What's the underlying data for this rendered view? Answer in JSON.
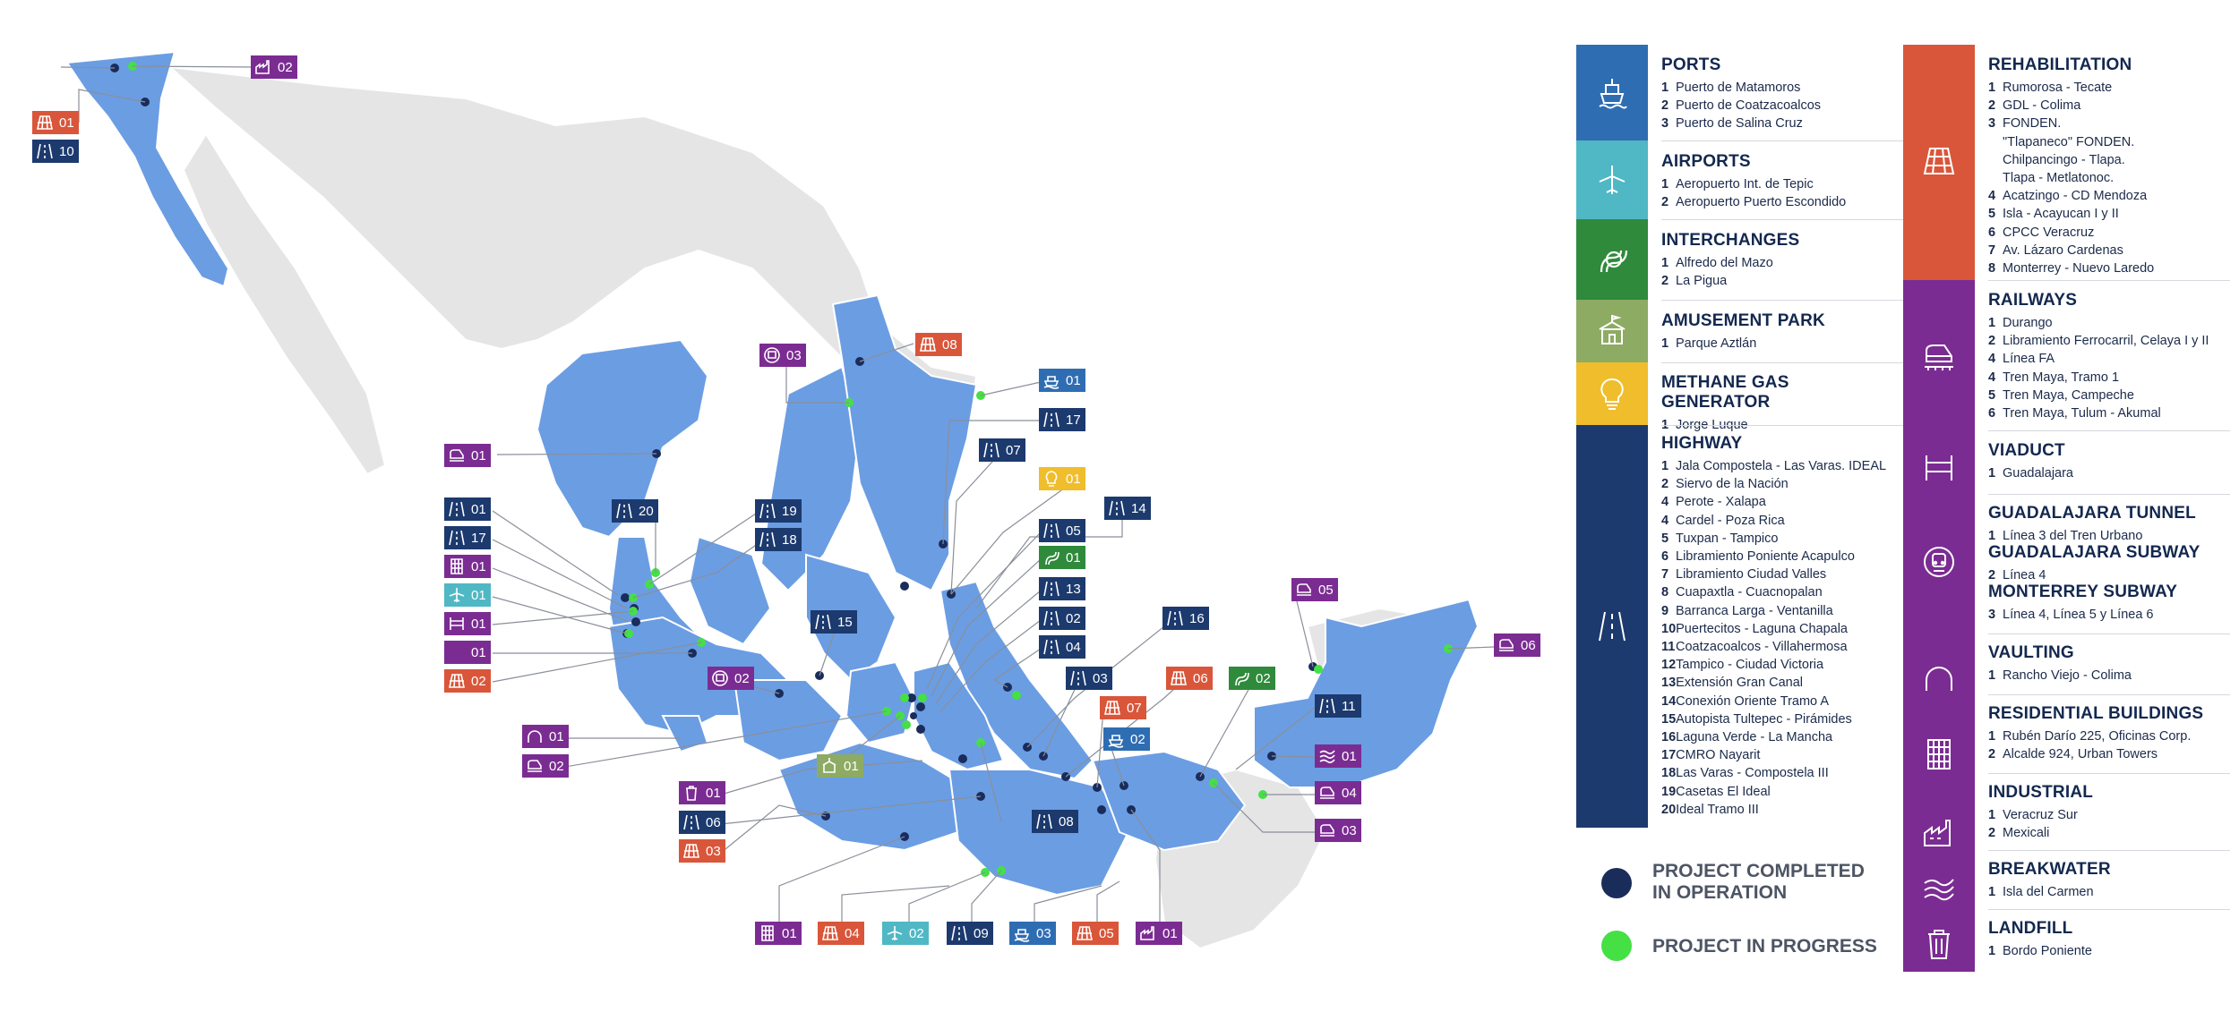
{
  "colors": {
    "state_blue": "#6b9de3",
    "land_gray": "#e5e5e5",
    "completed": "#1a2c5a",
    "in_progress": "#44e044",
    "ports": "#2f6db3",
    "airports": "#4fb8c4",
    "interchanges": "#2f8a3c",
    "amusement": "#8dab63",
    "methane": "#f0bd2c",
    "highway": "#1c3a6e",
    "rehabilitation": "#d9563a",
    "purple": "#7b2c92"
  },
  "map_tags": [
    {
      "id": "t1",
      "label": "02",
      "icon": "industrial-icon",
      "color": "#7b2c92"
    },
    {
      "id": "t2",
      "label": "01",
      "icon": "rehabilitation-icon",
      "color": "#d9563a"
    },
    {
      "id": "t3",
      "label": "10",
      "icon": "highway-icon",
      "color": "#1c3a6e"
    },
    {
      "id": "t4",
      "label": "03",
      "icon": "subway-icon",
      "color": "#7b2c92"
    },
    {
      "id": "t5",
      "label": "08",
      "icon": "rehabilitation-icon",
      "color": "#d9563a"
    },
    {
      "id": "t6",
      "label": "01",
      "icon": "ports-icon",
      "color": "#2f6db3"
    },
    {
      "id": "t7",
      "label": "17",
      "icon": "highway-icon",
      "color": "#1c3a6e"
    },
    {
      "id": "t8",
      "label": "07",
      "icon": "highway-icon",
      "color": "#1c3a6e"
    },
    {
      "id": "t9",
      "label": "01",
      "icon": "methane-icon",
      "color": "#f0bd2c"
    },
    {
      "id": "t10",
      "label": "14",
      "icon": "highway-icon",
      "color": "#1c3a6e"
    },
    {
      "id": "t11",
      "label": "05",
      "icon": "highway-icon",
      "color": "#1c3a6e"
    },
    {
      "id": "t12",
      "label": "01",
      "icon": "interchange-icon",
      "color": "#2f8a3c"
    },
    {
      "id": "t13",
      "label": "13",
      "icon": "highway-icon",
      "color": "#1c3a6e"
    },
    {
      "id": "t14",
      "label": "02",
      "icon": "highway-icon",
      "color": "#1c3a6e"
    },
    {
      "id": "t15",
      "label": "04",
      "icon": "highway-icon",
      "color": "#1c3a6e"
    },
    {
      "id": "t16",
      "label": "16",
      "icon": "highway-icon",
      "color": "#1c3a6e"
    },
    {
      "id": "t17",
      "label": "03",
      "icon": "highway-icon",
      "color": "#1c3a6e"
    },
    {
      "id": "t18",
      "label": "06",
      "icon": "rehabilitation-icon",
      "color": "#d9563a"
    },
    {
      "id": "t19",
      "label": "07",
      "icon": "rehabilitation-icon",
      "color": "#d9563a"
    },
    {
      "id": "t20",
      "label": "02",
      "icon": "ports-icon",
      "color": "#2f6db3"
    },
    {
      "id": "t21",
      "label": "02",
      "icon": "interchange-icon",
      "color": "#2f8a3c"
    },
    {
      "id": "t22",
      "label": "05",
      "icon": "railway-icon",
      "color": "#7b2c92"
    },
    {
      "id": "t23",
      "label": "06",
      "icon": "railway-icon",
      "color": "#7b2c92"
    },
    {
      "id": "t24",
      "label": "11",
      "icon": "highway-icon",
      "color": "#1c3a6e"
    },
    {
      "id": "t25",
      "label": "01",
      "icon": "breakwater-icon",
      "color": "#7b2c92"
    },
    {
      "id": "t26",
      "label": "04",
      "icon": "railway-icon",
      "color": "#7b2c92"
    },
    {
      "id": "t27",
      "label": "03",
      "icon": "railway-icon",
      "color": "#7b2c92"
    },
    {
      "id": "t28",
      "label": "01",
      "icon": "railway-icon",
      "color": "#7b2c92"
    },
    {
      "id": "t29",
      "label": "01",
      "icon": "highway-icon",
      "color": "#1c3a6e"
    },
    {
      "id": "t30",
      "label": "17",
      "icon": "highway-icon",
      "color": "#1c3a6e"
    },
    {
      "id": "t31",
      "label": "01",
      "icon": "residential-icon",
      "color": "#7b2c92"
    },
    {
      "id": "t32",
      "label": "01",
      "icon": "airports-icon",
      "color": "#4fb8c4"
    },
    {
      "id": "t33",
      "label": "01",
      "icon": "viaduct-icon",
      "color": "#7b2c92"
    },
    {
      "id": "t34",
      "label": "01",
      "icon": "tunnel-icon",
      "color": "#7b2c92"
    },
    {
      "id": "t35",
      "label": "02",
      "icon": "rehabilitation-icon",
      "color": "#d9563a"
    },
    {
      "id": "t36",
      "label": "20",
      "icon": "highway-icon",
      "color": "#1c3a6e"
    },
    {
      "id": "t37",
      "label": "19",
      "icon": "highway-icon",
      "color": "#1c3a6e"
    },
    {
      "id": "t38",
      "label": "18",
      "icon": "highway-icon",
      "color": "#1c3a6e"
    },
    {
      "id": "t39",
      "label": "15",
      "icon": "highway-icon",
      "color": "#1c3a6e"
    },
    {
      "id": "t40",
      "label": "02",
      "icon": "subway-icon",
      "color": "#7b2c92"
    },
    {
      "id": "t41",
      "label": "01",
      "icon": "vaulting-icon",
      "color": "#7b2c92"
    },
    {
      "id": "t42",
      "label": "02",
      "icon": "railway-icon",
      "color": "#7b2c92"
    },
    {
      "id": "t43",
      "label": "01",
      "icon": "amusement-icon",
      "color": "#8dab63"
    },
    {
      "id": "t44",
      "label": "01",
      "icon": "landfill-icon",
      "color": "#7b2c92"
    },
    {
      "id": "t45",
      "label": "06",
      "icon": "highway-icon",
      "color": "#1c3a6e"
    },
    {
      "id": "t46",
      "label": "03",
      "icon": "rehabilitation-icon",
      "color": "#d9563a"
    },
    {
      "id": "t47",
      "label": "08",
      "icon": "highway-icon",
      "color": "#1c3a6e"
    },
    {
      "id": "t48",
      "label": "01",
      "icon": "residential-icon",
      "color": "#7b2c92"
    },
    {
      "id": "t49",
      "label": "04",
      "icon": "rehabilitation-icon",
      "color": "#d9563a"
    },
    {
      "id": "t50",
      "label": "02",
      "icon": "airports-icon",
      "color": "#4fb8c4"
    },
    {
      "id": "t51",
      "label": "09",
      "icon": "highway-icon",
      "color": "#1c3a6e"
    },
    {
      "id": "t52",
      "label": "03",
      "icon": "ports-icon",
      "color": "#2f6db3"
    },
    {
      "id": "t53",
      "label": "05",
      "icon": "rehabilitation-icon",
      "color": "#d9563a"
    },
    {
      "id": "t54",
      "label": "01",
      "icon": "industrial-icon",
      "color": "#7b2c92"
    }
  ],
  "legend": {
    "ports": {
      "title": "PORTS",
      "items": [
        {
          "n": "1",
          "t": "Puerto de Matamoros"
        },
        {
          "n": "2",
          "t": "Puerto de Coatzacoalcos"
        },
        {
          "n": "3",
          "t": "Puerto de Salina Cruz"
        }
      ]
    },
    "airports": {
      "title": "AIRPORTS",
      "items": [
        {
          "n": "1",
          "t": "Aeropuerto Int. de Tepic"
        },
        {
          "n": "2",
          "t": "Aeropuerto Puerto Escondido"
        }
      ]
    },
    "interchanges": {
      "title": "INTERCHANGES",
      "items": [
        {
          "n": "1",
          "t": "Alfredo del Mazo"
        },
        {
          "n": "2",
          "t": "La Pigua"
        }
      ]
    },
    "amusement": {
      "title": "AMUSEMENT PARK",
      "items": [
        {
          "n": "1",
          "t": "Parque Aztlán"
        }
      ]
    },
    "methane": {
      "title": "METHANE GAS GENERATOR",
      "items": [
        {
          "n": "1",
          "t": "Jorge Luque"
        }
      ]
    },
    "highway": {
      "title": "HIGHWAY",
      "items": [
        {
          "n": "1",
          "t": "Jala Compostela - Las Varas. IDEAL"
        },
        {
          "n": "2",
          "t": "Siervo de la Nación"
        },
        {
          "n": "4",
          "t": "Perote - Xalapa"
        },
        {
          "n": "4",
          "t": "Cardel - Poza Rica"
        },
        {
          "n": "5",
          "t": "Tuxpan - Tampico"
        },
        {
          "n": "6",
          "t": "Libramiento Poniente Acapulco"
        },
        {
          "n": "7",
          "t": "Libramiento Ciudad Valles"
        },
        {
          "n": "8",
          "t": "Cuapaxtla - Cuacnopalan"
        },
        {
          "n": "9",
          "t": "Barranca Larga - Ventanilla"
        },
        {
          "n": "10",
          "t": "Puertecitos - Laguna Chapala"
        },
        {
          "n": "11",
          "t": "Coatzacoalcos - Villahermosa"
        },
        {
          "n": "12",
          "t": "Tampico - Ciudad Victoria"
        },
        {
          "n": "13",
          "t": "Extensión Gran Canal"
        },
        {
          "n": "14",
          "t": "Conexión Oriente Tramo A"
        },
        {
          "n": "15",
          "t": "Autopista Tultepec - Pirámides"
        },
        {
          "n": "16",
          "t": "Laguna Verde - La Mancha"
        },
        {
          "n": "17",
          "t": "CMRO Nayarit"
        },
        {
          "n": "18",
          "t": "Las Varas - Compostela III"
        },
        {
          "n": "19",
          "t": "Casetas El Ideal"
        },
        {
          "n": "20",
          "t": "Ideal Tramo III"
        }
      ]
    },
    "status": {
      "completed": "PROJECT COMPLETED IN OPERATION",
      "in_progress": "PROJECT IN PROGRESS"
    },
    "rehabilitation": {
      "title": "REHABILITATION",
      "items": [
        {
          "n": "1",
          "t": "Rumorosa - Tecate"
        },
        {
          "n": "2",
          "t": "GDL - Colima"
        },
        {
          "n": "3",
          "t": "FONDEN."
        },
        {
          "n": "",
          "t": "\"Tlapaneco\" FONDEN."
        },
        {
          "n": "",
          "t": "Chilpancingo - Tlapa."
        },
        {
          "n": "",
          "t": "Tlapa - Metlatonoc."
        },
        {
          "n": "4",
          "t": "Acatzingo - CD Mendoza"
        },
        {
          "n": "5",
          "t": "Isla - Acayucan I y II"
        },
        {
          "n": "6",
          "t": "CPCC Veracruz"
        },
        {
          "n": "7",
          "t": "Av. Lázaro Cardenas"
        },
        {
          "n": "8",
          "t": "Monterrey - Nuevo Laredo"
        }
      ]
    },
    "railways": {
      "title": "RAILWAYS",
      "items": [
        {
          "n": "1",
          "t": "Durango"
        },
        {
          "n": "2",
          "t": "Libramiento Ferrocarril, Celaya I y II"
        },
        {
          "n": "4",
          "t": "Línea FA"
        },
        {
          "n": "4",
          "t": "Tren Maya, Tramo 1"
        },
        {
          "n": "5",
          "t": "Tren Maya, Campeche"
        },
        {
          "n": "6",
          "t": "Tren Maya, Tulum - Akumal"
        }
      ]
    },
    "viaduct": {
      "title": "VIADUCT",
      "items": [
        {
          "n": "1",
          "t": "Guadalajara"
        }
      ]
    },
    "gdl_tunnel": {
      "title": "GUADALAJARA TUNNEL",
      "items": [
        {
          "n": "1",
          "t": "Línea 3 del Tren Urbano"
        }
      ]
    },
    "gdl_subway": {
      "title": "GUADALAJARA SUBWAY",
      "items": [
        {
          "n": "2",
          "t": "Línea 4"
        }
      ]
    },
    "mty_subway": {
      "title": "MONTERREY SUBWAY",
      "items": [
        {
          "n": "3",
          "t": "Línea 4, Línea 5 y Línea 6"
        }
      ]
    },
    "vaulting": {
      "title": "VAULTING",
      "items": [
        {
          "n": "1",
          "t": "Rancho Viejo - Colima"
        }
      ]
    },
    "residential": {
      "title": "RESIDENTIAL BUILDINGS",
      "items": [
        {
          "n": "1",
          "t": "Rubén Darío 225, Oficinas Corp."
        },
        {
          "n": "2",
          "t": "Alcalde 924, Urban Towers"
        }
      ]
    },
    "industrial": {
      "title": "INDUSTRIAL",
      "items": [
        {
          "n": "1",
          "t": "Veracruz Sur"
        },
        {
          "n": "2",
          "t": "Mexicali"
        }
      ]
    },
    "breakwater": {
      "title": "BREAKWATER",
      "items": [
        {
          "n": "1",
          "t": "Isla del Carmen"
        }
      ]
    },
    "landfill": {
      "title": "LANDFILL",
      "items": [
        {
          "n": "1",
          "t": "Bordo Poniente"
        }
      ]
    }
  }
}
